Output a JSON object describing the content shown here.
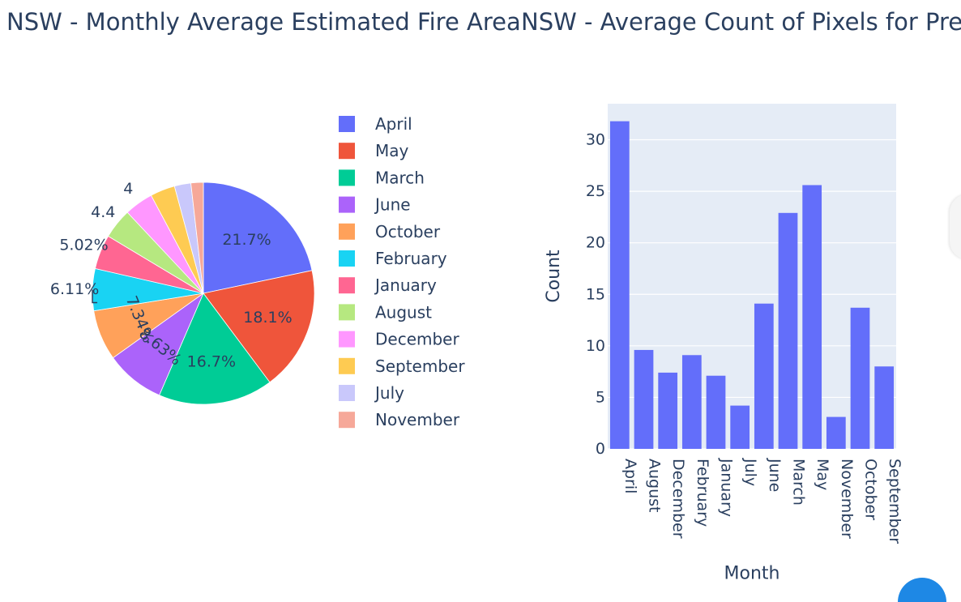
{
  "chart_data": [
    {
      "type": "pie",
      "title": "NSW - Monthly Average Estimated Fire Area",
      "slices": [
        {
          "label": "April",
          "value": 21.7,
          "text": "21.7%",
          "color": "#636efa"
        },
        {
          "label": "May",
          "value": 18.1,
          "text": "18.1%",
          "color": "#EF553B"
        },
        {
          "label": "March",
          "value": 16.7,
          "text": "16.7%",
          "color": "#00cc96"
        },
        {
          "label": "June",
          "value": 8.63,
          "text": "8.63%",
          "color": "#ab63fa"
        },
        {
          "label": "October",
          "value": 7.34,
          "text": "7.34%",
          "color": "#FFA15A"
        },
        {
          "label": "February",
          "value": 6.11,
          "text": "6.11%",
          "color": "#19d3f3"
        },
        {
          "label": "January",
          "value": 5.02,
          "text": "5.02%",
          "color": "#FF6692"
        },
        {
          "label": "August",
          "value": 4.4,
          "text": "4.4",
          "color": "#B6E880"
        },
        {
          "label": "December",
          "value": 4.2,
          "text": "4",
          "color": "#FF97FF"
        },
        {
          "label": "September",
          "value": 3.6,
          "text": "",
          "color": "#FECB52"
        },
        {
          "label": "July",
          "value": 2.4,
          "text": "",
          "color": "#c9c8fb"
        },
        {
          "label": "November",
          "value": 1.8,
          "text": "",
          "color": "#f6a899"
        }
      ],
      "legend": "right"
    },
    {
      "type": "bar",
      "title": "NSW - Average Count of Pixels for Presu",
      "xlabel": "Month",
      "ylabel": "Count",
      "categories": [
        "April",
        "August",
        "December",
        "February",
        "January",
        "July",
        "June",
        "March",
        "May",
        "November",
        "October",
        "September"
      ],
      "values": [
        31.8,
        9.6,
        7.4,
        9.1,
        7.1,
        4.2,
        14.1,
        22.9,
        25.6,
        3.1,
        13.7,
        8.0
      ],
      "ylim": [
        0,
        33.5
      ],
      "yticks": [
        0,
        5,
        10,
        15,
        20,
        25,
        30
      ],
      "grid": true,
      "bar_color": "#636efa",
      "plot_bg": "#e5ecf6"
    }
  ]
}
